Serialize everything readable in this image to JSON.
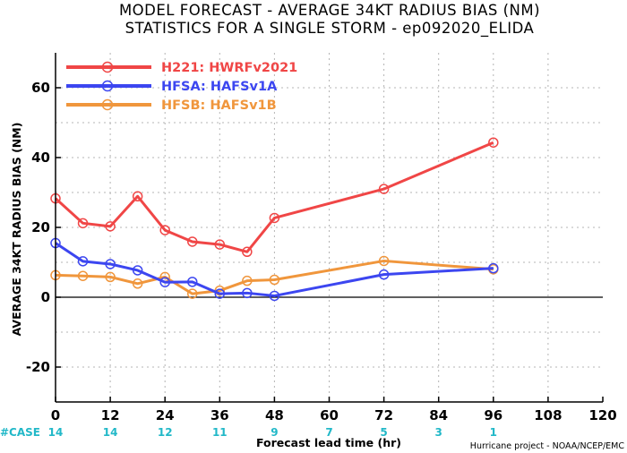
{
  "chart_data": {
    "type": "line",
    "title_line1": "MODEL FORECAST - AVERAGE 34KT RADIUS BIAS (NM)",
    "title_line2": "STATISTICS FOR A SINGLE STORM - ep092020_ELIDA",
    "xlabel": "Forecast lead time (hr)",
    "ylabel": "AVERAGE 34KT RADIUS BIAS (NM)",
    "xlim": [
      0,
      120
    ],
    "ylim": [
      -30,
      70
    ],
    "xticks": [
      0,
      12,
      24,
      36,
      48,
      60,
      72,
      84,
      96,
      108,
      120
    ],
    "yticks": [
      -20,
      0,
      20,
      40,
      60
    ],
    "grid": true,
    "legend_position": "top-left",
    "case_label": "#CASE",
    "case_x": [
      0,
      12,
      24,
      36,
      48,
      60,
      72,
      84,
      96
    ],
    "case_counts": [
      "14",
      "14",
      "12",
      "11",
      "9",
      "7",
      "5",
      "3",
      "1"
    ],
    "credit": "Hurricane project - NOAA/NCEP/EMC",
    "colors": {
      "zero_line": "#000000",
      "grid": "#b4b4b4",
      "case": "#22b8c8"
    },
    "series": [
      {
        "name": "H221: HWRFv2021",
        "color": "#f04646",
        "x": [
          0,
          6,
          12,
          18,
          24,
          30,
          36,
          42,
          48,
          72,
          96
        ],
        "y": [
          28.3,
          21.2,
          20.3,
          28.9,
          19.2,
          15.9,
          15.1,
          13.0,
          22.7,
          31.0,
          44.3
        ]
      },
      {
        "name": "HFSA: HAFSv1A",
        "color": "#3c46f0",
        "x": [
          0,
          6,
          12,
          18,
          24,
          30,
          36,
          42,
          48,
          72,
          96
        ],
        "y": [
          15.5,
          10.3,
          9.5,
          7.7,
          4.3,
          4.4,
          1.0,
          1.2,
          0.4,
          6.5,
          8.3
        ]
      },
      {
        "name": "HFSB: HAFSv1B",
        "color": "#f0963c",
        "x": [
          0,
          6,
          12,
          18,
          24,
          30,
          36,
          42,
          48,
          72,
          96
        ],
        "y": [
          6.3,
          6.1,
          5.8,
          3.9,
          5.8,
          1.0,
          1.9,
          4.7,
          5.0,
          10.4,
          8.0
        ]
      }
    ]
  }
}
